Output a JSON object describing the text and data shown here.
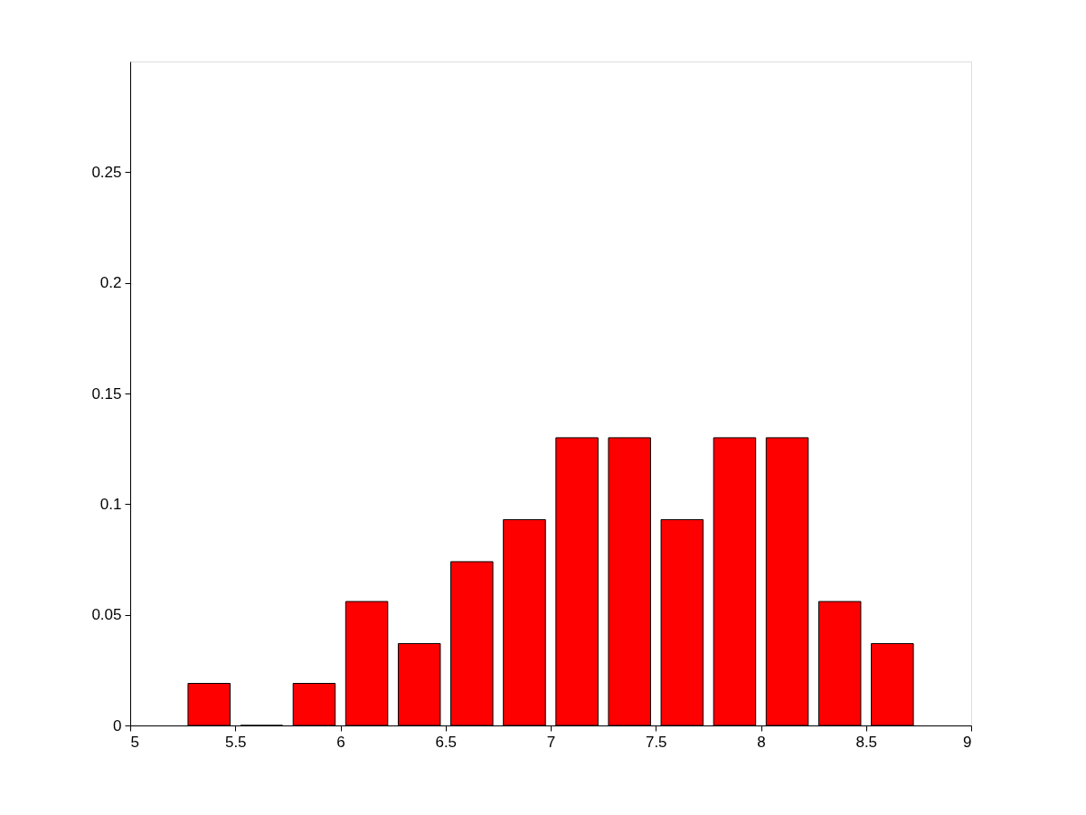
{
  "chart_data": {
    "type": "bar",
    "x": [
      5.375,
      5.625,
      5.875,
      6.125,
      6.375,
      6.625,
      6.875,
      7.125,
      7.375,
      7.625,
      7.875,
      8.125,
      8.375,
      8.625
    ],
    "values": [
      0.019,
      0,
      0.019,
      0.056,
      0.037,
      0.074,
      0.093,
      0.13,
      0.13,
      0.093,
      0.13,
      0.13,
      0.056,
      0.037
    ],
    "color": "#ff0000",
    "xlim": [
      5,
      9
    ],
    "xticks": [
      5,
      5.5,
      6,
      6.5,
      7,
      7.5,
      8,
      8.5,
      9
    ],
    "ylim": [
      0,
      0.3
    ],
    "yticks": [
      0,
      0.05,
      0.1,
      0.15,
      0.2,
      0.25
    ],
    "grid": false
  }
}
